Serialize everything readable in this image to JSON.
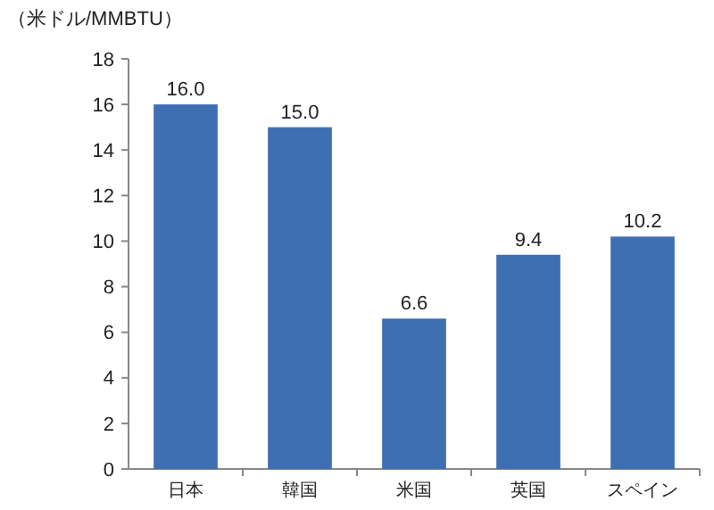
{
  "chart_data": {
    "type": "bar",
    "ylabel": "（米ドル/MMBTU）",
    "categories": [
      "日本",
      "韓国",
      "米国",
      "英国",
      "スペイン"
    ],
    "values": [
      16.0,
      15.0,
      6.6,
      9.4,
      10.2
    ],
    "value_labels": [
      "16.0",
      "15.0",
      "6.6",
      "9.4",
      "10.2"
    ],
    "color": "#3f6fb3",
    "ylim": [
      0,
      18
    ],
    "yticks": [
      0,
      2,
      4,
      6,
      8,
      10,
      12,
      14,
      16,
      18
    ],
    "grid": false
  }
}
